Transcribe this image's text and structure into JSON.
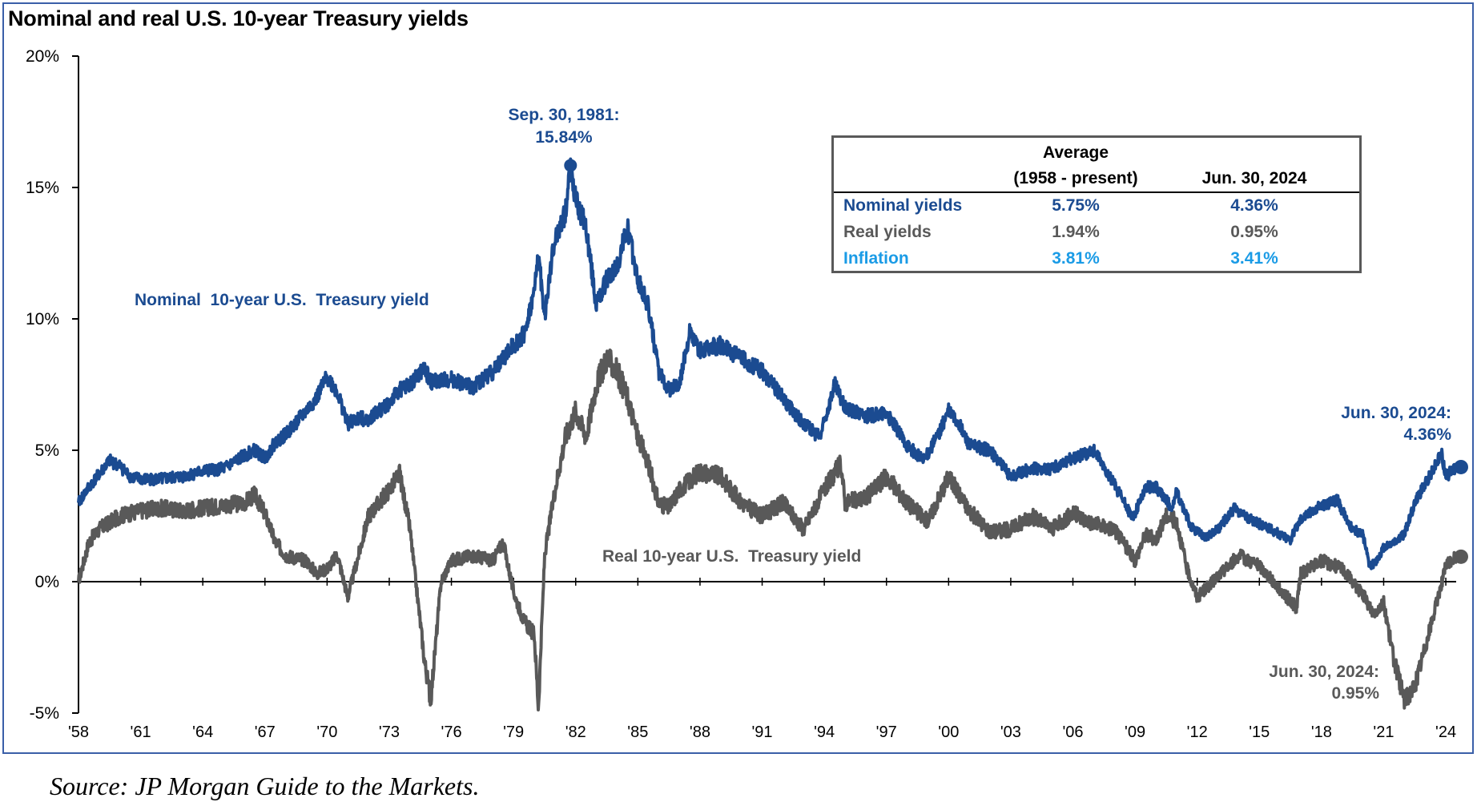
{
  "chart_data": {
    "type": "line",
    "title": "Nominal and real U.S. 10-year Treasury yields",
    "ylim": [
      -5,
      20
    ],
    "xlim": [
      1958,
      2024.5
    ],
    "yticks": [
      "20%",
      "15%",
      "10%",
      "5%",
      "0%",
      "-5%"
    ],
    "ytick_values": [
      20,
      15,
      10,
      5,
      0,
      -5
    ],
    "xticks": [
      "'58",
      "'61",
      "'64",
      "'67",
      "'70",
      "'73",
      "'76",
      "'79",
      "'82",
      "'85",
      "'88",
      "'91",
      "'94",
      "'97",
      "'00",
      "'03",
      "'06",
      "'09",
      "'12",
      "'15",
      "'18",
      "'21",
      "'24"
    ],
    "xtick_values": [
      1958,
      1961,
      1964,
      1967,
      1970,
      1973,
      1976,
      1979,
      1982,
      1985,
      1988,
      1991,
      1994,
      1997,
      2000,
      2003,
      2006,
      2009,
      2012,
      2015,
      2018,
      2021,
      2024
    ],
    "colors": {
      "nominal": "#1b4b91",
      "real": "#595959",
      "inflation": "#1a9be6"
    },
    "series": [
      {
        "name": "Nominal 10-year U.S. Treasury yield",
        "x": [
          1958.0,
          1958.5,
          1959.0,
          1959.5,
          1960.0,
          1960.5,
          1961.0,
          1962.0,
          1963.0,
          1964.0,
          1965.0,
          1966.0,
          1966.5,
          1967.0,
          1967.5,
          1968.0,
          1969.0,
          1969.5,
          1970.0,
          1970.5,
          1971.0,
          1971.5,
          1972.0,
          1973.0,
          1973.5,
          1974.0,
          1974.7,
          1975.0,
          1976.0,
          1977.0,
          1978.0,
          1979.0,
          1979.5,
          1980.0,
          1980.2,
          1980.5,
          1980.8,
          1981.0,
          1981.5,
          1981.75,
          1982.0,
          1982.5,
          1983.0,
          1983.5,
          1984.0,
          1984.5,
          1985.0,
          1985.5,
          1986.0,
          1986.5,
          1987.0,
          1987.5,
          1988.0,
          1989.0,
          1990.0,
          1991.0,
          1992.0,
          1993.0,
          1993.8,
          1994.5,
          1995.0,
          1996.0,
          1997.0,
          1998.0,
          1998.8,
          1999.5,
          2000.0,
          2000.5,
          2001.0,
          2002.0,
          2003.0,
          2004.0,
          2005.0,
          2006.0,
          2007.0,
          2008.0,
          2008.9,
          2009.5,
          2010.0,
          2010.8,
          2011.0,
          2011.7,
          2012.0,
          2012.5,
          2013.0,
          2013.8,
          2014.0,
          2015.0,
          2016.0,
          2016.5,
          2017.0,
          2018.0,
          2018.8,
          2019.0,
          2019.5,
          2020.0,
          2020.3,
          2020.6,
          2021.0,
          2021.5,
          2022.0,
          2022.5,
          2023.0,
          2023.8,
          2024.0,
          2024.5
        ],
        "values": [
          3.0,
          3.6,
          4.1,
          4.6,
          4.4,
          4.0,
          3.9,
          3.9,
          4.0,
          4.2,
          4.3,
          4.8,
          5.0,
          4.7,
          5.3,
          5.6,
          6.5,
          7.0,
          7.8,
          7.2,
          6.0,
          6.2,
          6.2,
          6.8,
          7.3,
          7.5,
          8.1,
          7.6,
          7.7,
          7.4,
          8.0,
          9.0,
          9.4,
          11.0,
          12.5,
          10.0,
          12.0,
          13.0,
          14.0,
          15.84,
          14.5,
          13.5,
          10.5,
          11.5,
          12.0,
          13.5,
          11.5,
          10.5,
          8.0,
          7.3,
          7.5,
          9.5,
          8.8,
          9.0,
          8.5,
          8.0,
          7.0,
          6.0,
          5.5,
          7.5,
          6.6,
          6.3,
          6.4,
          5.2,
          4.6,
          5.6,
          6.5,
          6.0,
          5.2,
          5.0,
          4.0,
          4.3,
          4.3,
          4.7,
          5.0,
          3.7,
          2.4,
          3.6,
          3.6,
          2.8,
          3.4,
          2.1,
          1.9,
          1.7,
          2.0,
          2.8,
          2.6,
          2.2,
          1.8,
          1.6,
          2.4,
          2.9,
          3.1,
          2.7,
          2.0,
          1.8,
          0.6,
          0.7,
          1.3,
          1.5,
          1.8,
          3.0,
          3.7,
          4.9,
          4.0,
          4.36
        ]
      },
      {
        "name": "Real 10-year U.S. Treasury yield",
        "x": [
          1958.0,
          1958.5,
          1959.0,
          1960.0,
          1961.0,
          1962.0,
          1963.0,
          1964.0,
          1965.0,
          1966.0,
          1966.5,
          1967.0,
          1967.5,
          1968.0,
          1969.0,
          1969.5,
          1970.0,
          1970.5,
          1971.0,
          1972.0,
          1973.0,
          1973.5,
          1974.0,
          1974.7,
          1975.0,
          1975.5,
          1976.0,
          1977.0,
          1978.0,
          1978.5,
          1979.0,
          1979.5,
          1980.0,
          1980.2,
          1980.5,
          1981.0,
          1981.5,
          1982.0,
          1982.5,
          1983.0,
          1983.5,
          1984.0,
          1984.5,
          1985.0,
          1985.5,
          1986.0,
          1986.5,
          1987.0,
          1988.0,
          1989.0,
          1990.0,
          1991.0,
          1992.0,
          1993.0,
          1994.0,
          1994.8,
          1995.0,
          1996.0,
          1997.0,
          1998.0,
          1999.0,
          2000.0,
          2001.0,
          2002.0,
          2003.0,
          2004.0,
          2005.0,
          2006.0,
          2007.0,
          2008.0,
          2009.0,
          2009.5,
          2010.0,
          2010.5,
          2011.0,
          2011.5,
          2012.0,
          2013.0,
          2014.0,
          2015.0,
          2016.0,
          2016.8,
          2017.0,
          2018.0,
          2019.0,
          2020.0,
          2020.5,
          2021.0,
          2021.5,
          2022.0,
          2022.5,
          2023.0,
          2023.5,
          2024.0,
          2024.5
        ],
        "values": [
          0.0,
          1.5,
          2.0,
          2.5,
          2.7,
          2.8,
          2.7,
          2.8,
          2.9,
          3.0,
          3.3,
          2.6,
          1.5,
          1.0,
          0.8,
          0.3,
          0.5,
          1.0,
          -0.6,
          2.5,
          3.5,
          4.1,
          2.0,
          -3.0,
          -4.5,
          0.0,
          0.8,
          1.0,
          0.8,
          1.5,
          -0.4,
          -1.5,
          -2.0,
          -4.8,
          1.0,
          3.5,
          5.5,
          6.5,
          5.5,
          7.5,
          8.5,
          8.0,
          7.0,
          5.5,
          4.5,
          3.0,
          2.8,
          3.5,
          4.2,
          4.0,
          3.0,
          2.5,
          3.0,
          2.0,
          3.5,
          4.5,
          3.0,
          3.2,
          4.0,
          3.0,
          2.3,
          4.0,
          2.7,
          1.9,
          2.0,
          2.5,
          2.0,
          2.6,
          2.2,
          2.0,
          0.8,
          1.8,
          1.6,
          2.5,
          2.3,
          0.5,
          -0.6,
          0.2,
          1.0,
          0.6,
          -0.3,
          -1.0,
          0.3,
          0.8,
          0.5,
          -0.5,
          -1.2,
          -0.8,
          -3.0,
          -4.5,
          -4.0,
          -2.5,
          -1.0,
          0.6,
          0.95
        ]
      }
    ],
    "annotations": {
      "peak_line1": "Sep. 30, 1981:",
      "peak_line2": "15.84%",
      "nominal_label": "Nominal  10-year U.S.  Treasury yield",
      "real_label": "Real 10-year U.S.  Treasury yield",
      "nominal_end_line1": "Jun. 30, 2024:",
      "nominal_end_line2": "4.36%",
      "real_end_line1": "Jun. 30, 2024:",
      "real_end_line2": "0.95%"
    },
    "table": {
      "header_avg_line1": "Average",
      "header_avg_line2": "(1958 - present)",
      "header_current": "Jun. 30, 2024",
      "rows": [
        {
          "label": "Nominal yields",
          "average": "5.75%",
          "current": "4.36%"
        },
        {
          "label": "Real yields",
          "average": "1.94%",
          "current": "0.95%"
        },
        {
          "label": "Inflation",
          "average": "3.81%",
          "current": "3.41%"
        }
      ]
    }
  },
  "source": "Source: JP Morgan Guide to the Markets."
}
